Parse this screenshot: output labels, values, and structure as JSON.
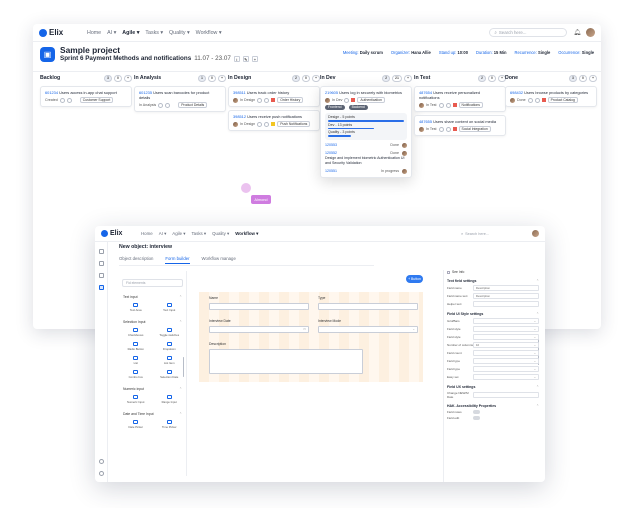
{
  "board": {
    "app": {
      "logo": "Elix",
      "search_placeholder": "Search here..."
    },
    "nav": [
      {
        "label": "Home",
        "active": false
      },
      {
        "label": "AI ▾",
        "active": false
      },
      {
        "label": "Agile ▾",
        "active": true
      },
      {
        "label": "Tasks ▾",
        "active": false
      },
      {
        "label": "Quality ▾",
        "active": false
      },
      {
        "label": "Workflow ▾",
        "active": false
      }
    ],
    "project": {
      "title": "Sample project",
      "sprint": "Sprint 6 Payment Methods and notifications",
      "dates": "11.07 - 23.07",
      "meta": [
        {
          "key": "Meeting:",
          "value": "Daily scrum"
        },
        {
          "key": "Organizer:",
          "value": "Hana Allie"
        },
        {
          "key": "Stand up:",
          "value": "10:00"
        },
        {
          "key": "Duration:",
          "value": "15 Min"
        },
        {
          "key": "Recurrence:",
          "value": "Single"
        },
        {
          "key": "Occurrence:",
          "value": "Single"
        }
      ]
    },
    "columns": [
      {
        "name": "Backlog",
        "counts": [
          "3",
          "0"
        ],
        "cards": [
          {
            "id": "601234",
            "title": "Users access in-app chat support",
            "status": "Created",
            "tag": "Customer Support"
          }
        ]
      },
      {
        "name": "In Analysis",
        "counts": [
          "1",
          "0"
        ],
        "cards": [
          {
            "id": "601235",
            "title": "Users scan barcodes for product details",
            "status": "In Analysis",
            "tag": "Product Details"
          }
        ]
      },
      {
        "name": "In Design",
        "counts": [
          "2",
          "0"
        ],
        "cards": [
          {
            "id": "398511",
            "title": "Users track order history",
            "status": "In Design",
            "tag": "Order History"
          },
          {
            "id": "398512",
            "title": "Users receive push notifications",
            "status": "In Design",
            "tag": "Push Notifications"
          }
        ]
      },
      {
        "name": "In Dev",
        "counts": [
          "2",
          "21"
        ],
        "cards": []
      },
      {
        "name": "In Test",
        "counts": [
          "2",
          "0"
        ],
        "cards": [
          {
            "id": "487654",
            "title": "Users receive personalized notifications",
            "status": "In Test",
            "tag": "Notifications"
          },
          {
            "id": "487655",
            "title": "Users share content on social media",
            "status": "In Test",
            "tag": "Social Integration"
          }
        ]
      },
      {
        "name": "Done",
        "counts": [
          "3",
          "0"
        ],
        "cards": [
          {
            "id": "698432",
            "title": "Users browse products by categories",
            "status": "Done",
            "tag": "Product Catalog"
          }
        ]
      }
    ],
    "expanded_card": {
      "id": "219605",
      "title": "Users log in securely with biometrics",
      "status": "In Dev",
      "tag": "Authentication",
      "chips": [
        "Frontend",
        "Backend"
      ],
      "estimates": [
        {
          "label": "Design - 5 points",
          "progress": 1.0
        },
        {
          "label": "Dev - 13 points",
          "progress": 0.6
        },
        {
          "label": "Quality - 3 points",
          "progress": 0.3
        }
      ],
      "subtasks": [
        {
          "id": "120553",
          "title": "",
          "status": "Done"
        },
        {
          "id": "120552",
          "title": "Design and implement biometric Authentication UI and Security Validation",
          "status": "Done"
        },
        {
          "id": "120551",
          "title": "",
          "status": "In progress"
        }
      ]
    },
    "drag_label": "Almond"
  },
  "builder": {
    "app": {
      "logo": "Elix",
      "search_placeholder": "Search here..."
    },
    "nav": [
      {
        "label": "Home",
        "active": false
      },
      {
        "label": "AI ▾",
        "active": false
      },
      {
        "label": "Agile ▾",
        "active": false
      },
      {
        "label": "Tasks ▾",
        "active": false
      },
      {
        "label": "Quality ▾",
        "active": false
      },
      {
        "label": "Workflow ▾",
        "active": true
      }
    ],
    "title": "New object: interview",
    "tabs": [
      {
        "label": "Object description",
        "active": false
      },
      {
        "label": "Form builder",
        "active": true
      },
      {
        "label": "Workflow manage",
        "active": false
      }
    ],
    "palette": {
      "search_placeholder": "Fid elements",
      "sections": [
        {
          "name": "Text input",
          "items": [
            "Text Area",
            "Text Input"
          ]
        },
        {
          "name": "Selection Input",
          "items": [
            "Checkboxes",
            "Toggle switches",
            "Radio Button",
            "Dropdown",
            "List",
            "List Item",
            "Combo box",
            "Selection Date"
          ]
        },
        {
          "name": "Numeric input",
          "items": [
            "Numeric Input",
            "Range Input"
          ]
        },
        {
          "name": "Date and Time Input",
          "items": [
            "Date Picker",
            "Time Picker"
          ]
        }
      ]
    },
    "button_label": "+ Button",
    "fields": [
      {
        "label": "Name",
        "value": "",
        "suffix": ""
      },
      {
        "label": "Type",
        "value": "",
        "suffix": ""
      },
      {
        "label": "Interview Date",
        "value": "",
        "suffix": "▭"
      },
      {
        "label": "Interview Mode",
        "value": "",
        "suffix": "⌄"
      },
      {
        "label": "Description",
        "value": "",
        "suffix": ""
      }
    ],
    "props": {
      "see_all": "See Info",
      "sections": [
        {
          "name": "Text field settings",
          "rows": [
            {
              "label": "Field name",
              "value": "Description"
            },
            {
              "label": "Field name text",
              "value": "Description"
            },
            {
              "label": "Helper text",
              "value": ""
            }
          ]
        },
        {
          "name": "Field UI Style settings",
          "rows": [
            {
              "label": "Grid/Bars",
              "value": ""
            },
            {
              "label": "Field style",
              "value": ""
            },
            {
              "label": "Field style",
              "value": ""
            },
            {
              "label": "Number of columns",
              "value": "10"
            },
            {
              "label": "Field count",
              "value": ""
            },
            {
              "label": "Field type",
              "value": ""
            },
            {
              "label": "Field type",
              "value": ""
            },
            {
              "label": "Easy set",
              "value": ""
            }
          ]
        },
        {
          "name": "Field UX settings",
          "rows": [
            {
              "label": "Change NEW/M Date",
              "value": ""
            }
          ]
        },
        {
          "name": "HAK. Accessibility Properties",
          "rows": [
            {
              "label": "Field notes",
              "value": ""
            },
            {
              "label": "Field edit",
              "value": ""
            }
          ]
        }
      ]
    }
  },
  "icons": {
    "bell": "bell-icon",
    "search": "search-icon",
    "project": "project-icon"
  },
  "colors": {
    "accent": "#1565e8",
    "drag": "#cf7ce0"
  }
}
